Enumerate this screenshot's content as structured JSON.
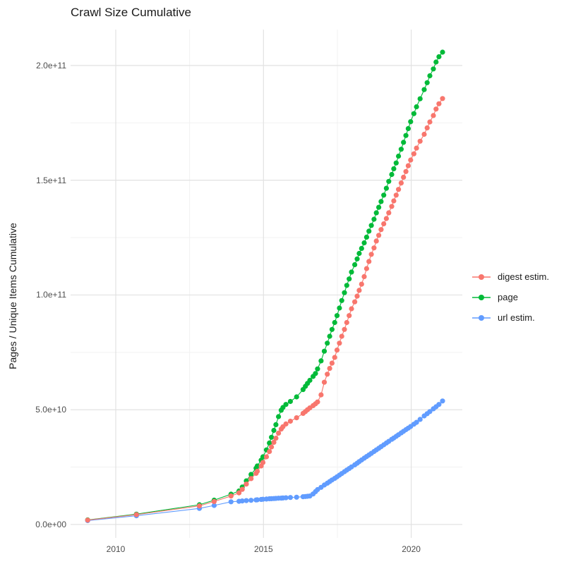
{
  "title": "Crawl Size Cumulative",
  "y_axis": {
    "label": "Pages / Unique Items Cumulative",
    "tick_labels": [
      "0.0e+00",
      "5.0e+10",
      "1.0e+11",
      "1.5e+11",
      "2.0e+11"
    ],
    "tick_values_billions": [
      0,
      50,
      100,
      150,
      200
    ],
    "minor_grid_values_billions": [
      25,
      75,
      125,
      175
    ]
  },
  "x_axis": {
    "tick_labels": [
      "2010",
      "2015",
      "2020"
    ],
    "tick_values": [
      2010,
      2015,
      2020
    ],
    "minor_grid_values": [
      2012.5,
      2017.5
    ]
  },
  "colors": {
    "digest": "#F8766D",
    "page": "#00BA38",
    "url": "#619CFF",
    "grid_major": "#e2e2e2",
    "grid_minor": "#f1f1f1",
    "axis_text": "#4d4d4d",
    "title_text": "#1a1a1a"
  },
  "chart_data": {
    "type": "scatter",
    "marker": "point-with-line",
    "title": "Crawl Size Cumulative",
    "xlabel": "",
    "ylabel": "Pages / Unique Items Cumulative",
    "x_unit": "year (decimal, one point per crawl)",
    "y_unit": "cumulative count, billions (1e9)",
    "xlim": [
      2008.4,
      2021.7
    ],
    "ylim_billions": [
      -10,
      216
    ],
    "grid": "major and minor, light gray on white",
    "legend_position": "right-center",
    "series": [
      {
        "name": "digest estim.",
        "color": "#F8766D",
        "points": [
          [
            2009.05,
            1.9
          ],
          [
            2010.7,
            4.3
          ],
          [
            2012.83,
            8.1
          ],
          [
            2013.33,
            10.0
          ],
          [
            2013.9,
            12.4
          ],
          [
            2014.17,
            13.8
          ],
          [
            2014.28,
            15.3
          ],
          [
            2014.42,
            17.6
          ],
          [
            2014.58,
            20.0
          ],
          [
            2014.75,
            22.3
          ],
          [
            2014.79,
            23.2
          ],
          [
            2014.92,
            25.5
          ],
          [
            2014.98,
            27.0
          ],
          [
            2015.1,
            29.5
          ],
          [
            2015.2,
            31.8
          ],
          [
            2015.27,
            33.8
          ],
          [
            2015.35,
            35.8
          ],
          [
            2015.42,
            37.6
          ],
          [
            2015.51,
            39.8
          ],
          [
            2015.6,
            41.6
          ],
          [
            2015.66,
            42.6
          ],
          [
            2015.76,
            43.8
          ],
          [
            2015.91,
            45.0
          ],
          [
            2016.12,
            46.5
          ],
          [
            2016.34,
            48.4
          ],
          [
            2016.42,
            49.2
          ],
          [
            2016.49,
            50.0
          ],
          [
            2016.57,
            50.8
          ],
          [
            2016.68,
            51.8
          ],
          [
            2016.76,
            52.6
          ],
          [
            2016.83,
            53.4
          ],
          [
            2016.95,
            56.5
          ],
          [
            2017.06,
            62.0
          ],
          [
            2017.16,
            65.5
          ],
          [
            2017.24,
            68.0
          ],
          [
            2017.32,
            70.3
          ],
          [
            2017.41,
            72.8
          ],
          [
            2017.49,
            76.0
          ],
          [
            2017.57,
            79.0
          ],
          [
            2017.65,
            82.0
          ],
          [
            2017.74,
            85.0
          ],
          [
            2017.82,
            88.0
          ],
          [
            2017.9,
            91.0
          ],
          [
            2017.98,
            94.0
          ],
          [
            2018.09,
            97.0
          ],
          [
            2018.17,
            99.5
          ],
          [
            2018.24,
            102.0
          ],
          [
            2018.32,
            104.7
          ],
          [
            2018.41,
            108.0
          ],
          [
            2018.49,
            111.5
          ],
          [
            2018.57,
            114.6
          ],
          [
            2018.65,
            117.7
          ],
          [
            2018.74,
            120.5
          ],
          [
            2018.82,
            123.5
          ],
          [
            2018.9,
            126.0
          ],
          [
            2018.98,
            128.5
          ],
          [
            2019.07,
            131.0
          ],
          [
            2019.16,
            133.3
          ],
          [
            2019.24,
            135.8
          ],
          [
            2019.34,
            138.6
          ],
          [
            2019.41,
            141.0
          ],
          [
            2019.49,
            143.5
          ],
          [
            2019.57,
            146.0
          ],
          [
            2019.66,
            148.8
          ],
          [
            2019.74,
            151.3
          ],
          [
            2019.82,
            153.8
          ],
          [
            2019.9,
            156.3
          ],
          [
            2019.98,
            158.8
          ],
          [
            2020.09,
            161.5
          ],
          [
            2020.18,
            164.0
          ],
          [
            2020.3,
            167.0
          ],
          [
            2020.44,
            170.0
          ],
          [
            2020.54,
            172.8
          ],
          [
            2020.63,
            175.4
          ],
          [
            2020.75,
            178.2
          ],
          [
            2020.84,
            181.0
          ],
          [
            2020.94,
            183.3
          ],
          [
            2021.06,
            185.6
          ]
        ]
      },
      {
        "name": "page",
        "color": "#00BA38",
        "points": [
          [
            2009.05,
            2.0
          ],
          [
            2010.7,
            4.5
          ],
          [
            2012.83,
            8.6
          ],
          [
            2013.33,
            10.6
          ],
          [
            2013.9,
            13.2
          ],
          [
            2014.17,
            14.6
          ],
          [
            2014.28,
            16.3
          ],
          [
            2014.42,
            19.0
          ],
          [
            2014.58,
            21.8
          ],
          [
            2014.75,
            24.5
          ],
          [
            2014.79,
            25.5
          ],
          [
            2014.92,
            28.0
          ],
          [
            2014.98,
            29.5
          ],
          [
            2015.1,
            32.5
          ],
          [
            2015.2,
            35.5
          ],
          [
            2015.27,
            38.0
          ],
          [
            2015.35,
            41.0
          ],
          [
            2015.42,
            43.5
          ],
          [
            2015.51,
            47.0
          ],
          [
            2015.6,
            49.8
          ],
          [
            2015.66,
            51.0
          ],
          [
            2015.76,
            52.3
          ],
          [
            2015.91,
            53.6
          ],
          [
            2016.12,
            55.6
          ],
          [
            2016.34,
            58.8
          ],
          [
            2016.42,
            60.2
          ],
          [
            2016.49,
            61.5
          ],
          [
            2016.57,
            62.8
          ],
          [
            2016.68,
            64.5
          ],
          [
            2016.76,
            65.8
          ],
          [
            2016.83,
            67.8
          ],
          [
            2016.95,
            71.3
          ],
          [
            2017.06,
            75.5
          ],
          [
            2017.16,
            79.0
          ],
          [
            2017.24,
            82.0
          ],
          [
            2017.32,
            85.0
          ],
          [
            2017.41,
            88.0
          ],
          [
            2017.49,
            91.0
          ],
          [
            2017.57,
            94.3
          ],
          [
            2017.65,
            97.6
          ],
          [
            2017.74,
            101.0
          ],
          [
            2017.82,
            104.2
          ],
          [
            2017.9,
            107.0
          ],
          [
            2017.98,
            110.0
          ],
          [
            2018.09,
            113.2
          ],
          [
            2018.17,
            115.7
          ],
          [
            2018.24,
            118.1
          ],
          [
            2018.32,
            120.3
          ],
          [
            2018.41,
            122.7
          ],
          [
            2018.49,
            125.2
          ],
          [
            2018.57,
            127.8
          ],
          [
            2018.65,
            130.3
          ],
          [
            2018.74,
            133.0
          ],
          [
            2018.82,
            135.8
          ],
          [
            2018.9,
            138.2
          ],
          [
            2018.98,
            140.7
          ],
          [
            2019.07,
            143.5
          ],
          [
            2019.16,
            146.5
          ],
          [
            2019.24,
            149.5
          ],
          [
            2019.34,
            152.5
          ],
          [
            2019.41,
            155.0
          ],
          [
            2019.49,
            157.5
          ],
          [
            2019.57,
            160.5
          ],
          [
            2019.66,
            163.5
          ],
          [
            2019.74,
            166.5
          ],
          [
            2019.82,
            169.5
          ],
          [
            2019.9,
            172.5
          ],
          [
            2019.98,
            175.5
          ],
          [
            2020.09,
            179.0
          ],
          [
            2020.18,
            182.0
          ],
          [
            2020.3,
            185.5
          ],
          [
            2020.44,
            189.5
          ],
          [
            2020.54,
            192.5
          ],
          [
            2020.63,
            195.5
          ],
          [
            2020.75,
            198.5
          ],
          [
            2020.84,
            201.5
          ],
          [
            2020.94,
            203.8
          ],
          [
            2021.06,
            205.8
          ]
        ]
      },
      {
        "name": "url estim.",
        "color": "#619CFF",
        "points": [
          [
            2009.05,
            1.7
          ],
          [
            2010.7,
            3.8
          ],
          [
            2012.83,
            7.0
          ],
          [
            2013.33,
            8.3
          ],
          [
            2013.9,
            9.9
          ],
          [
            2014.17,
            10.1
          ],
          [
            2014.28,
            10.25
          ],
          [
            2014.42,
            10.4
          ],
          [
            2014.58,
            10.55
          ],
          [
            2014.75,
            10.7
          ],
          [
            2014.79,
            10.75
          ],
          [
            2014.92,
            10.9
          ],
          [
            2014.98,
            11.0
          ],
          [
            2015.1,
            11.1
          ],
          [
            2015.2,
            11.2
          ],
          [
            2015.27,
            11.25
          ],
          [
            2015.35,
            11.3
          ],
          [
            2015.42,
            11.35
          ],
          [
            2015.51,
            11.45
          ],
          [
            2015.6,
            11.5
          ],
          [
            2015.66,
            11.55
          ],
          [
            2015.76,
            11.65
          ],
          [
            2015.91,
            11.75
          ],
          [
            2016.12,
            11.9
          ],
          [
            2016.34,
            12.1
          ],
          [
            2016.42,
            12.2
          ],
          [
            2016.49,
            12.3
          ],
          [
            2016.57,
            12.4
          ],
          [
            2016.68,
            13.3
          ],
          [
            2016.76,
            14.3
          ],
          [
            2016.83,
            15.2
          ],
          [
            2016.95,
            16.2
          ],
          [
            2017.06,
            17.2
          ],
          [
            2017.16,
            18.0
          ],
          [
            2017.24,
            18.7
          ],
          [
            2017.32,
            19.4
          ],
          [
            2017.41,
            20.1
          ],
          [
            2017.49,
            20.8
          ],
          [
            2017.57,
            21.5
          ],
          [
            2017.65,
            22.2
          ],
          [
            2017.74,
            23.0
          ],
          [
            2017.82,
            23.7
          ],
          [
            2017.9,
            24.4
          ],
          [
            2017.98,
            25.1
          ],
          [
            2018.09,
            26.0
          ],
          [
            2018.17,
            26.7
          ],
          [
            2018.24,
            27.4
          ],
          [
            2018.32,
            28.1
          ],
          [
            2018.41,
            28.9
          ],
          [
            2018.49,
            29.6
          ],
          [
            2018.57,
            30.3
          ],
          [
            2018.65,
            31.0
          ],
          [
            2018.74,
            31.8
          ],
          [
            2018.82,
            32.5
          ],
          [
            2018.9,
            33.2
          ],
          [
            2018.98,
            33.9
          ],
          [
            2019.07,
            34.7
          ],
          [
            2019.16,
            35.5
          ],
          [
            2019.24,
            36.2
          ],
          [
            2019.34,
            37.1
          ],
          [
            2019.41,
            37.7
          ],
          [
            2019.49,
            38.4
          ],
          [
            2019.57,
            39.1
          ],
          [
            2019.66,
            39.9
          ],
          [
            2019.74,
            40.6
          ],
          [
            2019.82,
            41.3
          ],
          [
            2019.9,
            42.0
          ],
          [
            2019.98,
            42.7
          ],
          [
            2020.09,
            43.7
          ],
          [
            2020.18,
            44.5
          ],
          [
            2020.3,
            45.8
          ],
          [
            2020.44,
            47.3
          ],
          [
            2020.54,
            48.3
          ],
          [
            2020.63,
            49.2
          ],
          [
            2020.75,
            50.4
          ],
          [
            2020.84,
            51.3
          ],
          [
            2020.94,
            52.3
          ],
          [
            2021.06,
            53.8
          ]
        ]
      }
    ]
  },
  "legend": {
    "items": [
      "digest estim.",
      "page",
      "url estim."
    ]
  }
}
